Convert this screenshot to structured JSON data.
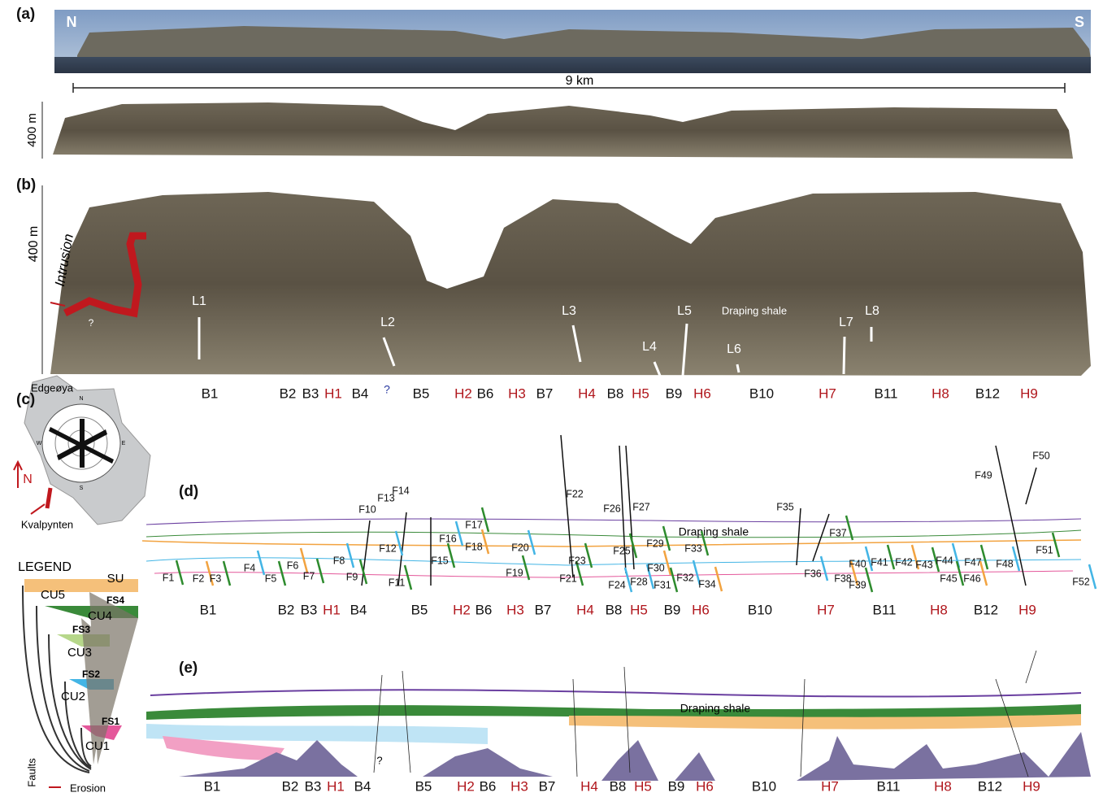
{
  "panels": {
    "a": "(a)",
    "b": "(b)",
    "c": "(c)",
    "d": "(d)",
    "e": "(e)"
  },
  "panel_a": {
    "north": "N",
    "south": "S",
    "scale_bar": "9 km",
    "height_scale": "400 m"
  },
  "panel_b": {
    "height_scale": "400 m",
    "intrusion": "Intrusion",
    "intrusion_query": "?",
    "lines": [
      "L1",
      "L2",
      "L3",
      "L4",
      "L5",
      "L6",
      "L7",
      "L8"
    ],
    "query": "?",
    "draping_shale": "Draping shale"
  },
  "panel_c": {
    "island": "Edgeøya",
    "north": "N",
    "locality": "Kvalpynten",
    "rose_labels": [
      "N",
      "E",
      "S",
      "W"
    ]
  },
  "legend": {
    "title": "LEGEND",
    "units": [
      "CU5",
      "CU4",
      "CU3",
      "CU2",
      "CU1"
    ],
    "surfaces": [
      "SU",
      "FS4",
      "FS3",
      "FS2",
      "FS1"
    ],
    "faults": "Faults",
    "erosion": "Erosion"
  },
  "units_row": [
    "B1",
    "B2",
    "B3",
    "H1",
    "B4",
    "B5",
    "H2",
    "B6",
    "H3",
    "B7",
    "H4",
    "B8",
    "H5",
    "B9",
    "H6",
    "B10",
    "H7",
    "B11",
    "H8",
    "B12",
    "H9"
  ],
  "panel_d": {
    "draping_shale": "Draping shale",
    "faults": [
      "F1",
      "F2",
      "F3",
      "F4",
      "F5",
      "F6",
      "F7",
      "F8",
      "F9",
      "F10",
      "F11",
      "F12",
      "F13",
      "F14",
      "F15",
      "F16",
      "F17",
      "F18",
      "F19",
      "F20",
      "F21",
      "F22",
      "F23",
      "F24",
      "F25",
      "F26",
      "F27",
      "F28",
      "F29",
      "F30",
      "F31",
      "F32",
      "F33",
      "F34",
      "F35",
      "F36",
      "F37",
      "F38",
      "F39",
      "F40",
      "F41",
      "F42",
      "F43",
      "F44",
      "F45",
      "F46",
      "F47",
      "F48",
      "F49",
      "F50",
      "F51",
      "F52"
    ]
  },
  "panel_e": {
    "draping_shale": "Draping shale",
    "query": "?"
  }
}
